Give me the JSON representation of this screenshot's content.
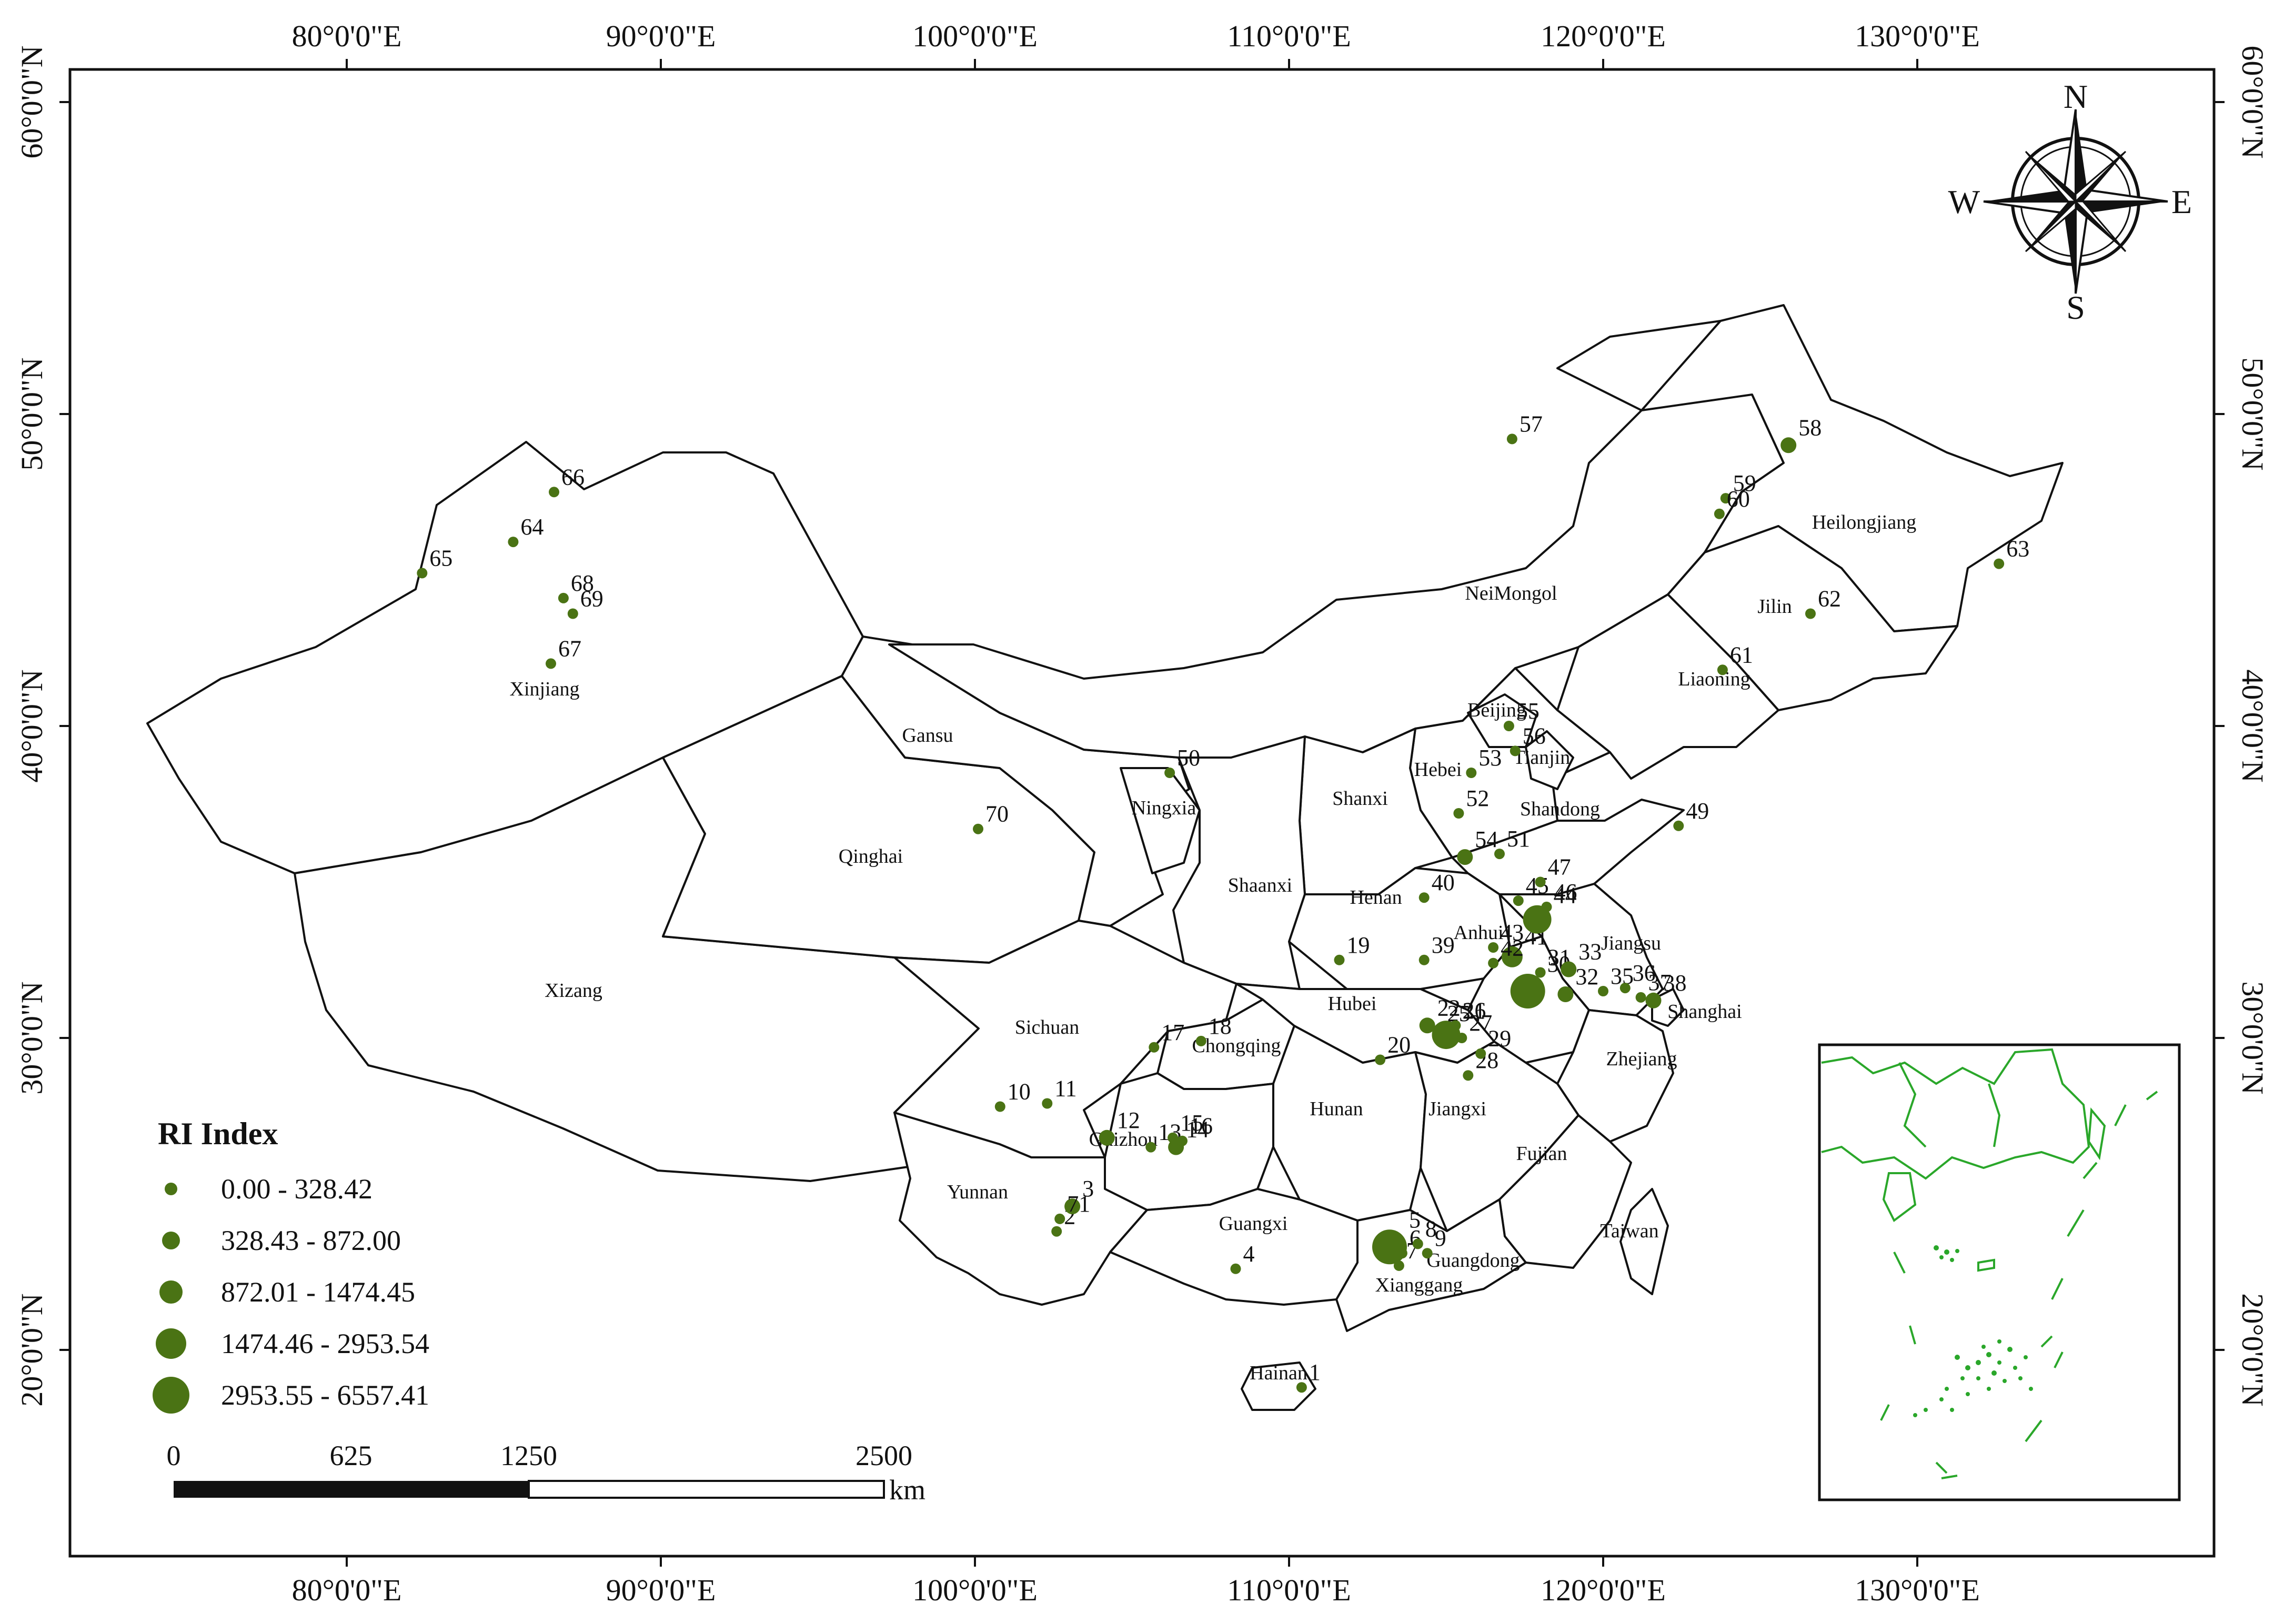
{
  "axes": {
    "top_labels": [
      "80°0'0\"E",
      "90°0'0\"E",
      "100°0'0\"E",
      "110°0'0\"E",
      "120°0'0\"E",
      "130°0'0\"E"
    ],
    "bottom_labels": [
      "80°0'0\"E",
      "90°0'0\"E",
      "100°0'0\"E",
      "110°0'0\"E",
      "120°0'0\"E",
      "130°0'0\"E"
    ],
    "left_labels": [
      "60°0'0\"N",
      "50°0'0\"N",
      "40°0'0\"N",
      "30°0'0\"N",
      "20°0'0\"N"
    ],
    "right_labels": [
      "60°0'0\"N",
      "50°0'0\"N",
      "40°0'0\"N",
      "30°0'0\"N",
      "20°0'0\"N"
    ]
  },
  "compass": {
    "n": "N",
    "s": "S",
    "e": "E",
    "w": "W"
  },
  "provinces": [
    {
      "key": "xinjiang",
      "label": "Xinjiang"
    },
    {
      "key": "xizang",
      "label": "Xizang"
    },
    {
      "key": "qinghai",
      "label": "Qinghai"
    },
    {
      "key": "gansu",
      "label": "Gansu"
    },
    {
      "key": "neimongol",
      "label": "NeiMongol"
    },
    {
      "key": "heilongjiang",
      "label": "Heilongjiang"
    },
    {
      "key": "jilin",
      "label": "Jilin"
    },
    {
      "key": "liaoning",
      "label": "Liaoning"
    },
    {
      "key": "beijing",
      "label": "Beijing"
    },
    {
      "key": "tianjin",
      "label": "Tianjin"
    },
    {
      "key": "hebei",
      "label": "Hebei"
    },
    {
      "key": "shanxi",
      "label": "Shanxi"
    },
    {
      "key": "shandong",
      "label": "Shandong"
    },
    {
      "key": "ningxia",
      "label": "Ningxia"
    },
    {
      "key": "shaanxi",
      "label": "Shaanxi"
    },
    {
      "key": "henan",
      "label": "Henan"
    },
    {
      "key": "jiangsu",
      "label": "Jiangsu"
    },
    {
      "key": "anhui",
      "label": "Anhui"
    },
    {
      "key": "shanghai",
      "label": "Shanghai"
    },
    {
      "key": "sichuan",
      "label": "Sichuan"
    },
    {
      "key": "chongqing",
      "label": "Chongqing"
    },
    {
      "key": "hubei",
      "label": "Hubei"
    },
    {
      "key": "zhejiang",
      "label": "Zhejiang"
    },
    {
      "key": "hunan",
      "label": "Hunan"
    },
    {
      "key": "jiangxi",
      "label": "Jiangxi"
    },
    {
      "key": "fujian",
      "label": "Fujian"
    },
    {
      "key": "guizhou",
      "label": "Guizhou"
    },
    {
      "key": "yunnan",
      "label": "Yunnan"
    },
    {
      "key": "guangxi",
      "label": "Guangxi"
    },
    {
      "key": "guangdong",
      "label": "Guangdong"
    },
    {
      "key": "xianggang",
      "label": "Xianggang"
    },
    {
      "key": "taiwan",
      "label": "Taiwan"
    },
    {
      "key": "hainan",
      "label": "Hainan"
    }
  ],
  "sites": [
    {
      "id": "1",
      "lon": 110.4,
      "lat": 18.8,
      "cls": 0
    },
    {
      "id": "2",
      "lon": 102.6,
      "lat": 23.8,
      "cls": 0
    },
    {
      "id": "3",
      "lon": 103.1,
      "lat": 24.6,
      "cls": 1
    },
    {
      "id": "4",
      "lon": 108.3,
      "lat": 22.6,
      "cls": 0
    },
    {
      "id": "5",
      "lon": 113.2,
      "lat": 23.3,
      "cls": 4
    },
    {
      "id": "6",
      "lon": 113.6,
      "lat": 23.1,
      "cls": 0
    },
    {
      "id": "7",
      "lon": 113.5,
      "lat": 22.7,
      "cls": 0
    },
    {
      "id": "8",
      "lon": 114.1,
      "lat": 23.4,
      "cls": 0
    },
    {
      "id": "9",
      "lon": 114.4,
      "lat": 23.1,
      "cls": 0
    },
    {
      "id": "10",
      "lon": 100.8,
      "lat": 27.8,
      "cls": 0
    },
    {
      "id": "11",
      "lon": 102.3,
      "lat": 27.9,
      "cls": 0
    },
    {
      "id": "12",
      "lon": 104.2,
      "lat": 26.8,
      "cls": 1
    },
    {
      "id": "13",
      "lon": 105.6,
      "lat": 26.5,
      "cls": 0
    },
    {
      "id": "14",
      "lon": 106.4,
      "lat": 26.5,
      "cls": 1
    },
    {
      "id": "15",
      "lon": 106.3,
      "lat": 26.8,
      "cls": 0
    },
    {
      "id": "16",
      "lon": 106.6,
      "lat": 26.7,
      "cls": 0
    },
    {
      "id": "17",
      "lon": 105.7,
      "lat": 29.7,
      "cls": 0
    },
    {
      "id": "18",
      "lon": 107.2,
      "lat": 29.9,
      "cls": 0
    },
    {
      "id": "19",
      "lon": 111.6,
      "lat": 32.5,
      "cls": 0
    },
    {
      "id": "20",
      "lon": 112.9,
      "lat": 29.3,
      "cls": 0
    },
    {
      "id": "21",
      "lon": 115.0,
      "lat": 30.1,
      "cls": 3
    },
    {
      "id": "22",
      "lon": 114.4,
      "lat": 30.4,
      "cls": 1
    },
    {
      "id": "25",
      "lon": 114.8,
      "lat": 30.3,
      "cls": 0
    },
    {
      "id": "26",
      "lon": 115.3,
      "lat": 30.4,
      "cls": 0
    },
    {
      "id": "27",
      "lon": 115.5,
      "lat": 30.0,
      "cls": 0
    },
    {
      "id": "28",
      "lon": 115.7,
      "lat": 28.8,
      "cls": 0
    },
    {
      "id": "29",
      "lon": 116.1,
      "lat": 29.5,
      "cls": 0
    },
    {
      "id": "30",
      "lon": 117.6,
      "lat": 31.5,
      "cls": 4
    },
    {
      "id": "31",
      "lon": 118.0,
      "lat": 32.1,
      "cls": 0
    },
    {
      "id": "32",
      "lon": 118.8,
      "lat": 31.4,
      "cls": 1
    },
    {
      "id": "33",
      "lon": 118.9,
      "lat": 32.2,
      "cls": 1
    },
    {
      "id": "35",
      "lon": 120.0,
      "lat": 31.5,
      "cls": 0
    },
    {
      "id": "36",
      "lon": 120.7,
      "lat": 31.6,
      "cls": 0
    },
    {
      "id": "37",
      "lon": 121.2,
      "lat": 31.3,
      "cls": 0
    },
    {
      "id": "38",
      "lon": 121.6,
      "lat": 31.2,
      "cls": 1
    },
    {
      "id": "39",
      "lon": 114.3,
      "lat": 32.5,
      "cls": 0
    },
    {
      "id": "40",
      "lon": 114.3,
      "lat": 34.5,
      "cls": 0
    },
    {
      "id": "41",
      "lon": 117.1,
      "lat": 32.6,
      "cls": 2
    },
    {
      "id": "42",
      "lon": 116.5,
      "lat": 32.4,
      "cls": 0
    },
    {
      "id": "43",
      "lon": 116.5,
      "lat": 32.9,
      "cls": 0
    },
    {
      "id": "44",
      "lon": 117.9,
      "lat": 33.8,
      "cls": 3
    },
    {
      "id": "45",
      "lon": 117.3,
      "lat": 34.4,
      "cls": 0
    },
    {
      "id": "46",
      "lon": 118.2,
      "lat": 34.2,
      "cls": 0
    },
    {
      "id": "47",
      "lon": 118.0,
      "lat": 35.0,
      "cls": 0
    },
    {
      "id": "49",
      "lon": 122.4,
      "lat": 36.8,
      "cls": 0
    },
    {
      "id": "50",
      "lon": 106.2,
      "lat": 38.5,
      "cls": 0
    },
    {
      "id": "51",
      "lon": 116.7,
      "lat": 35.9,
      "cls": 0
    },
    {
      "id": "52",
      "lon": 115.4,
      "lat": 37.2,
      "cls": 0
    },
    {
      "id": "53",
      "lon": 115.8,
      "lat": 38.5,
      "cls": 0
    },
    {
      "id": "54",
      "lon": 115.6,
      "lat": 35.8,
      "cls": 1
    },
    {
      "id": "55",
      "lon": 117.0,
      "lat": 40.0,
      "cls": 0
    },
    {
      "id": "56",
      "lon": 117.2,
      "lat": 39.2,
      "cls": 0
    },
    {
      "id": "57",
      "lon": 117.1,
      "lat": 49.2,
      "cls": 0
    },
    {
      "id": "58",
      "lon": 125.9,
      "lat": 49.0,
      "cls": 1
    },
    {
      "id": "59",
      "lon": 123.9,
      "lat": 47.3,
      "cls": 0
    },
    {
      "id": "60",
      "lon": 123.7,
      "lat": 46.8,
      "cls": 0
    },
    {
      "id": "61",
      "lon": 123.8,
      "lat": 41.8,
      "cls": 0
    },
    {
      "id": "62",
      "lon": 126.6,
      "lat": 43.6,
      "cls": 0
    },
    {
      "id": "63",
      "lon": 132.6,
      "lat": 45.2,
      "cls": 0
    },
    {
      "id": "64",
      "lon": 85.3,
      "lat": 45.9,
      "cls": 0
    },
    {
      "id": "65",
      "lon": 82.4,
      "lat": 44.9,
      "cls": 0
    },
    {
      "id": "66",
      "lon": 86.6,
      "lat": 47.5,
      "cls": 0
    },
    {
      "id": "67",
      "lon": 86.5,
      "lat": 42.0,
      "cls": 0
    },
    {
      "id": "68",
      "lon": 86.9,
      "lat": 44.1,
      "cls": 0
    },
    {
      "id": "69",
      "lon": 87.2,
      "lat": 43.6,
      "cls": 0
    },
    {
      "id": "70",
      "lon": 100.1,
      "lat": 36.7,
      "cls": 0
    },
    {
      "id": "71",
      "lon": 102.7,
      "lat": 24.2,
      "cls": 0
    }
  ],
  "legend": {
    "title": "RI Index",
    "classes": [
      {
        "label": "0.00 - 328.42"
      },
      {
        "label": "328.43 - 872.00"
      },
      {
        "label": "872.01 - 1474.45"
      },
      {
        "label": "1474.46 - 2953.54"
      },
      {
        "label": "2953.55 - 6557.41"
      }
    ]
  },
  "scale": {
    "ticks": [
      "0",
      "625",
      "1250",
      "2500"
    ],
    "unit": "km"
  },
  "colors": {
    "site": "#4a7314",
    "inset_coast": "#2aa72a",
    "border": "#111111"
  }
}
